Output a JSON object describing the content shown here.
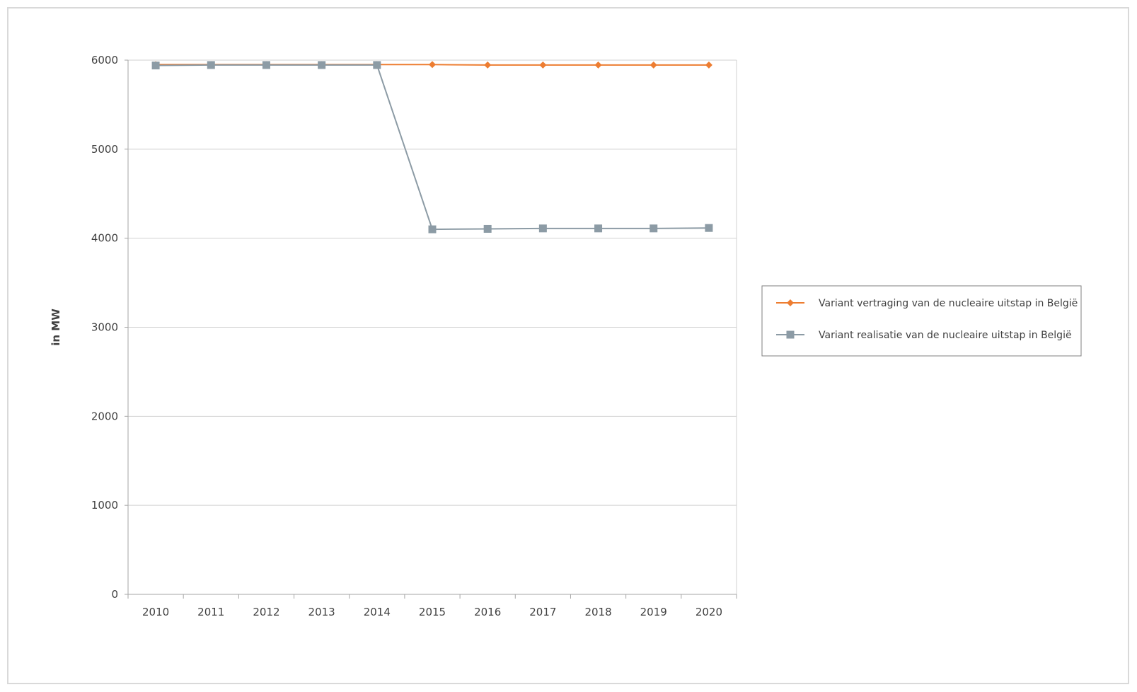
{
  "chart_data": {
    "type": "line",
    "title": "",
    "xlabel": "",
    "ylabel": "in MW",
    "categories": [
      "2010",
      "2011",
      "2012",
      "2013",
      "2014",
      "2015",
      "2016",
      "2017",
      "2018",
      "2019",
      "2020"
    ],
    "ylim": [
      0,
      6000
    ],
    "yticks": [
      0,
      1000,
      2000,
      3000,
      4000,
      5000,
      6000
    ],
    "grid": true,
    "legend_position": "right",
    "series": [
      {
        "name": "Variant vertraging van de nucleaire uitstap in België",
        "color": "#ed7d31",
        "marker": "diamond",
        "values": [
          5950,
          5950,
          5950,
          5950,
          5950,
          5950,
          5945,
          5945,
          5945,
          5945,
          5945
        ]
      },
      {
        "name": "Variant realisatie van de nucleaire uitstap in België",
        "color": "#8c9ba5",
        "marker": "square",
        "values": [
          5940,
          5945,
          5945,
          5945,
          5945,
          4100,
          4105,
          4110,
          4110,
          4110,
          4115
        ]
      }
    ]
  }
}
